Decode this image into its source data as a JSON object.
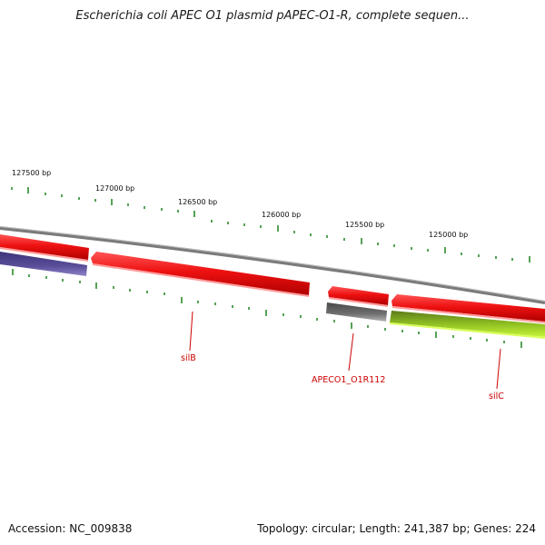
{
  "title": "Escherichia coli APEC O1 plasmid pAPEC-O1-R, complete sequen...",
  "footer": {
    "accession": "Accession: NC_009838",
    "summary": "Topology: circular; Length: 241,387 bp; Genes: 224"
  },
  "coordinate_labels": [
    "127500 bp",
    "127000 bp",
    "126500 bp",
    "126000 bp",
    "125500 bp",
    "125000 bp"
  ],
  "gene_labels": [
    "silB",
    "APECO1_O1R112",
    "silC"
  ],
  "colors": {
    "backbone": "#8a8a8a",
    "forward_gene": "#ee1111",
    "reverse_gene_blue": "#5a4e9a",
    "reverse_gene_gray": "#6f6f6f",
    "reverse_gene_green": "#8fcf22",
    "tick": "#2d8a2d",
    "label": "#cc0000"
  }
}
